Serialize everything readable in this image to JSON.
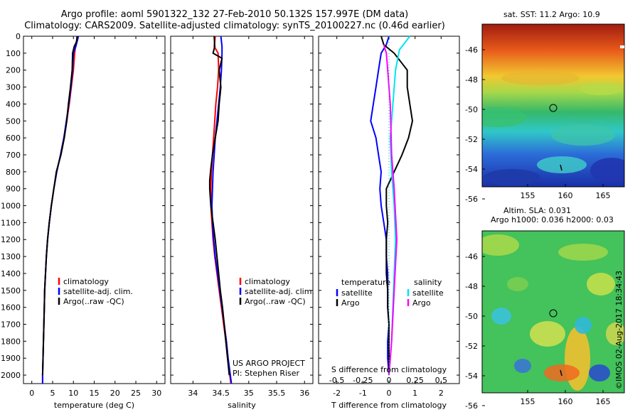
{
  "header": {
    "title_line1": "Argo profile: aoml 5901322_132 27-Feb-2010 50.132S 157.997E (DM data)",
    "title_line2": "Climatology: CARS2009. Satellite-adjusted climatology: synTS_20100227.nc (0.46d earlier)"
  },
  "colors": {
    "climatology": "#ff0000",
    "satellite": "#0000ff",
    "argo": "#000000",
    "sal_sat": "#00e5ee",
    "sal_argo": "#ff00ff"
  },
  "chart_data": [
    {
      "type": "line",
      "xlabel": "temperature (deg C)",
      "ylim": [
        0,
        2050
      ],
      "xlim": [
        -2,
        32
      ],
      "xticks": [
        "0",
        "5",
        "10",
        "15",
        "20",
        "25",
        "30"
      ],
      "yticks": [
        "0",
        "100",
        "200",
        "300",
        "400",
        "500",
        "600",
        "700",
        "800",
        "900",
        "1000",
        "1100",
        "1200",
        "1300",
        "1400",
        "1500",
        "1600",
        "1700",
        "1800",
        "1900",
        "2000"
      ],
      "legend": [
        "climatology",
        "satellite-adj. clim.",
        "Argo(..raw -QC)"
      ],
      "series": [
        {
          "name": "climatology",
          "color": "#ff0000",
          "points": [
            [
              10.9,
              0
            ],
            [
              10.8,
              20
            ],
            [
              10.5,
              60
            ],
            [
              10.3,
              100
            ],
            [
              10.0,
              200
            ],
            [
              9.5,
              300
            ],
            [
              9.0,
              400
            ],
            [
              8.4,
              500
            ],
            [
              7.7,
              600
            ],
            [
              6.9,
              700
            ],
            [
              6.0,
              800
            ],
            [
              5.3,
              900
            ],
            [
              4.7,
              1000
            ],
            [
              4.2,
              1100
            ],
            [
              3.8,
              1200
            ],
            [
              3.5,
              1300
            ],
            [
              3.3,
              1400
            ],
            [
              3.1,
              1500
            ],
            [
              3.0,
              1600
            ],
            [
              2.9,
              1700
            ],
            [
              2.8,
              1800
            ],
            [
              2.7,
              1900
            ],
            [
              2.6,
              2000
            ],
            [
              2.6,
              2050
            ]
          ]
        },
        {
          "name": "satellite-adj. clim.",
          "color": "#0000ff",
          "points": [
            [
              11.2,
              0
            ],
            [
              11.0,
              20
            ],
            [
              10.6,
              60
            ],
            [
              10.0,
              100
            ],
            [
              9.8,
              200
            ],
            [
              9.4,
              300
            ],
            [
              8.9,
              400
            ],
            [
              8.3,
              500
            ],
            [
              7.7,
              600
            ],
            [
              6.9,
              700
            ],
            [
              6.0,
              800
            ],
            [
              5.3,
              900
            ],
            [
              4.7,
              1000
            ],
            [
              4.2,
              1100
            ],
            [
              3.8,
              1200
            ],
            [
              3.5,
              1300
            ],
            [
              3.3,
              1400
            ],
            [
              3.1,
              1500
            ],
            [
              3.0,
              1600
            ],
            [
              2.9,
              1700
            ],
            [
              2.8,
              1800
            ],
            [
              2.7,
              1900
            ],
            [
              2.6,
              2000
            ],
            [
              2.6,
              2050
            ]
          ]
        },
        {
          "name": "Argo(..raw -QC)",
          "color": "#000000",
          "points": [
            [
              10.9,
              0
            ],
            [
              10.8,
              30
            ],
            [
              10.2,
              60
            ],
            [
              9.8,
              100
            ],
            [
              9.7,
              200
            ],
            [
              9.3,
              300
            ],
            [
              8.8,
              400
            ],
            [
              8.4,
              500
            ],
            [
              7.8,
              600
            ],
            [
              7.0,
              700
            ],
            [
              5.9,
              800
            ],
            [
              5.3,
              900
            ],
            [
              4.7,
              1000
            ],
            [
              4.2,
              1100
            ],
            [
              3.8,
              1200
            ],
            [
              3.5,
              1300
            ],
            [
              3.3,
              1400
            ],
            [
              3.1,
              1500
            ],
            [
              3.0,
              1600
            ],
            [
              2.9,
              1700
            ],
            [
              2.8,
              1800
            ],
            [
              2.7,
              1900
            ],
            [
              2.6,
              2000
            ]
          ]
        }
      ]
    },
    {
      "type": "line",
      "xlabel": "salinity",
      "ylim": [
        0,
        2050
      ],
      "xlim": [
        33.6,
        36.15
      ],
      "xticks": [
        "34",
        "34.5",
        "35",
        "35.5",
        "36"
      ],
      "legend": [
        "climatology",
        "satellite-adj. clim.",
        "Argo(..raw -QC)"
      ],
      "annotation": [
        "US ARGO PROJECT",
        "PI: Stephen Riser"
      ],
      "series": [
        {
          "name": "climatology",
          "color": "#ff0000",
          "points": [
            [
              34.4,
              0
            ],
            [
              34.38,
              60
            ],
            [
              34.45,
              100
            ],
            [
              34.46,
              200
            ],
            [
              34.44,
              300
            ],
            [
              34.41,
              400
            ],
            [
              34.39,
              500
            ],
            [
              34.37,
              600
            ],
            [
              34.35,
              700
            ],
            [
              34.33,
              800
            ],
            [
              34.32,
              900
            ],
            [
              34.32,
              1000
            ],
            [
              34.34,
              1100
            ],
            [
              34.36,
              1200
            ],
            [
              34.39,
              1300
            ],
            [
              34.43,
              1400
            ],
            [
              34.47,
              1500
            ],
            [
              34.51,
              1600
            ],
            [
              34.55,
              1700
            ],
            [
              34.59,
              1800
            ],
            [
              34.62,
              1900
            ],
            [
              34.66,
              2000
            ],
            [
              34.68,
              2050
            ]
          ]
        },
        {
          "name": "satellite-adj. clim.",
          "color": "#0000ff",
          "points": [
            [
              34.5,
              0
            ],
            [
              34.52,
              60
            ],
            [
              34.52,
              100
            ],
            [
              34.51,
              200
            ],
            [
              34.49,
              300
            ],
            [
              34.46,
              400
            ],
            [
              34.43,
              500
            ],
            [
              34.4,
              600
            ],
            [
              34.38,
              700
            ],
            [
              34.36,
              800
            ],
            [
              34.35,
              900
            ],
            [
              34.34,
              1000
            ],
            [
              34.35,
              1100
            ],
            [
              34.37,
              1200
            ],
            [
              34.4,
              1300
            ],
            [
              34.44,
              1400
            ],
            [
              34.48,
              1500
            ],
            [
              34.52,
              1600
            ],
            [
              34.56,
              1700
            ],
            [
              34.6,
              1800
            ],
            [
              34.63,
              1900
            ],
            [
              34.67,
              2000
            ],
            [
              34.69,
              2050
            ]
          ]
        },
        {
          "name": "Argo(..raw -QC)",
          "color": "#000000",
          "points": [
            [
              34.38,
              0
            ],
            [
              34.39,
              60
            ],
            [
              34.36,
              100
            ],
            [
              34.52,
              130
            ],
            [
              34.47,
              200
            ],
            [
              34.5,
              300
            ],
            [
              34.47,
              400
            ],
            [
              34.45,
              500
            ],
            [
              34.4,
              600
            ],
            [
              34.35,
              700
            ],
            [
              34.32,
              780
            ],
            [
              34.3,
              850
            ],
            [
              34.3,
              900
            ],
            [
              34.32,
              1000
            ],
            [
              34.36,
              1100
            ],
            [
              34.4,
              1200
            ],
            [
              34.43,
              1300
            ],
            [
              34.46,
              1400
            ],
            [
              34.49,
              1500
            ],
            [
              34.53,
              1600
            ],
            [
              34.56,
              1700
            ],
            [
              34.59,
              1800
            ],
            [
              34.62,
              1900
            ],
            [
              34.65,
              2000
            ]
          ]
        }
      ]
    },
    {
      "type": "line",
      "xlabel": "T difference from climatology",
      "xlabel_top": "S difference from climatology",
      "ylim": [
        0,
        2050
      ],
      "xlim": [
        -2.7,
        2.7
      ],
      "xticks": [
        "-2",
        "-1",
        "0",
        "1",
        "2"
      ],
      "xticks_top": [
        "-0.5",
        "-0.25",
        "0",
        "0.25",
        "0.5"
      ],
      "legend_headers": [
        "temperature",
        "salinity"
      ],
      "legend": [
        "satellite",
        "Argo",
        "satellite",
        "Argo"
      ],
      "series": [
        {
          "name": "temperature satellite",
          "color": "#0000ff",
          "points": [
            [
              0.0,
              0
            ],
            [
              -0.1,
              50
            ],
            [
              -0.3,
              100
            ],
            [
              -0.4,
              200
            ],
            [
              -0.5,
              300
            ],
            [
              -0.6,
              400
            ],
            [
              -0.7,
              500
            ],
            [
              -0.5,
              600
            ],
            [
              -0.4,
              700
            ],
            [
              -0.3,
              800
            ],
            [
              -0.35,
              900
            ],
            [
              -0.3,
              1000
            ],
            [
              -0.2,
              1100
            ],
            [
              -0.1,
              1200
            ],
            [
              -0.1,
              1300
            ],
            [
              -0.05,
              1400
            ],
            [
              -0.05,
              1500
            ],
            [
              -0.05,
              1600
            ],
            [
              0.0,
              1700
            ],
            [
              -0.05,
              1800
            ],
            [
              -0.05,
              1900
            ],
            [
              0.0,
              2000
            ]
          ]
        },
        {
          "name": "temperature Argo",
          "color": "#000000",
          "points": [
            [
              -0.3,
              0
            ],
            [
              -0.2,
              50
            ],
            [
              0.2,
              100
            ],
            [
              0.7,
              200
            ],
            [
              0.7,
              300
            ],
            [
              0.8,
              400
            ],
            [
              0.9,
              500
            ],
            [
              0.75,
              600
            ],
            [
              0.5,
              700
            ],
            [
              0.2,
              800
            ],
            [
              -0.1,
              900
            ],
            [
              -0.1,
              1000
            ],
            [
              -0.05,
              1100
            ],
            [
              -0.1,
              1200
            ],
            [
              -0.1,
              1300
            ],
            [
              -0.1,
              1400
            ],
            [
              -0.05,
              1500
            ],
            [
              -0.05,
              1600
            ],
            [
              0.0,
              1700
            ],
            [
              0.0,
              1800
            ],
            [
              0.0,
              1900
            ],
            [
              0.0,
              2000
            ]
          ]
        },
        {
          "name": "salinity satellite",
          "color": "#00e5ee",
          "points": [
            [
              0.8,
              0
            ],
            [
              0.4,
              80
            ],
            [
              0.25,
              200
            ],
            [
              0.15,
              400
            ],
            [
              0.05,
              600
            ],
            [
              0.1,
              800
            ],
            [
              0.2,
              1000
            ],
            [
              0.25,
              1200
            ],
            [
              0.2,
              1400
            ],
            [
              0.15,
              1600
            ],
            [
              0.1,
              1800
            ],
            [
              0.0,
              2000
            ]
          ]
        },
        {
          "name": "salinity Argo",
          "color": "#ff00ff",
          "points": [
            [
              -0.2,
              50
            ],
            [
              -0.1,
              100
            ],
            [
              -0.05,
              200
            ],
            [
              0.05,
              400
            ],
            [
              0.1,
              700
            ],
            [
              0.2,
              900
            ],
            [
              0.3,
              1200
            ],
            [
              0.2,
              1500
            ],
            [
              0.1,
              1800
            ],
            [
              0.0,
              2000
            ]
          ]
        }
      ]
    }
  ],
  "maps": {
    "sst": {
      "title": "sat. SST: 11.2 Argo: 10.9",
      "yticks": [
        "-46",
        "-48",
        "-50",
        "-52",
        "-54",
        "-56"
      ],
      "xticks": [
        "155",
        "160",
        "165"
      ]
    },
    "sla": {
      "title_line1": "Altim. SLA: 0.031",
      "title_line2": "Argo h1000: 0.036 h2000: 0.03",
      "yticks": [
        "-46",
        "-48",
        "-50",
        "-52",
        "-54",
        "-56"
      ],
      "xticks": [
        "155",
        "160",
        "165"
      ]
    }
  },
  "footer": {
    "stamp": "©IMOS 02-Aug-2017 18:34:43"
  }
}
